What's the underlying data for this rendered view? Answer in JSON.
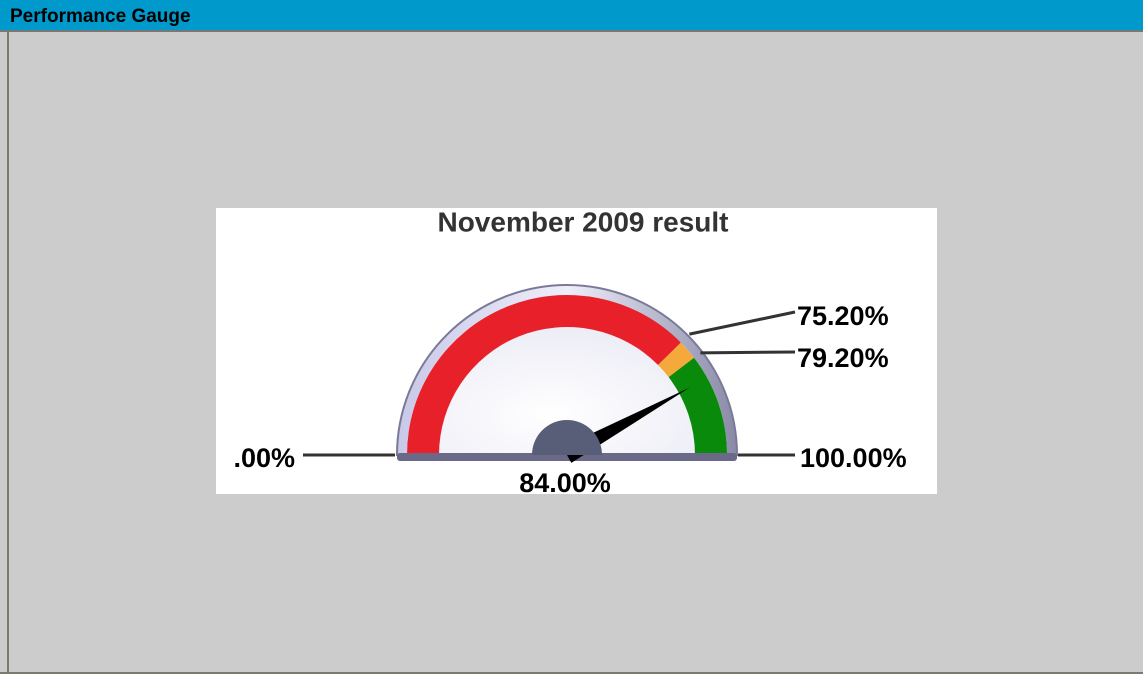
{
  "panel": {
    "title": "Performance Gauge"
  },
  "chart_data": {
    "type": "gauge",
    "title": "November 2009 result",
    "value": 84,
    "value_label": "84.00%",
    "range": [
      0,
      100
    ],
    "ticks": [
      {
        "value": 0,
        "label": ".00%"
      },
      {
        "value": 75.2,
        "label": "75.20%"
      },
      {
        "value": 79.2,
        "label": "79.20%"
      },
      {
        "value": 100,
        "label": "100.00%"
      }
    ],
    "bands": [
      {
        "color": "#e8202a"
      },
      {
        "color": "#f5a93a"
      },
      {
        "color": "#0a8a0a"
      }
    ],
    "needle_color": "#000000"
  }
}
